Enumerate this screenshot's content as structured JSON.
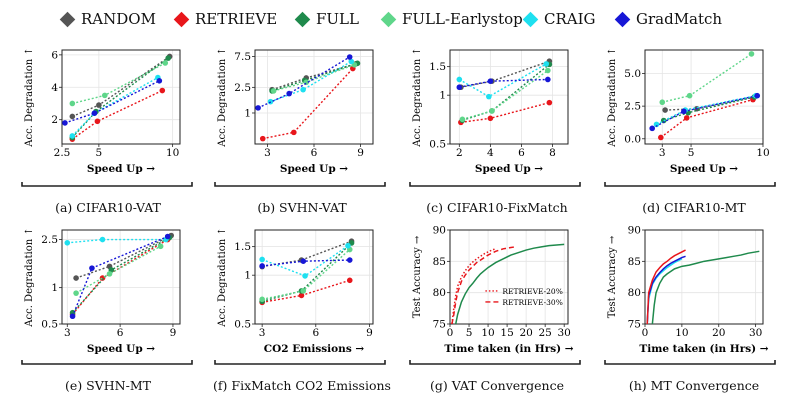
{
  "legend": [
    {
      "name": "RANDOM",
      "color": "#555555"
    },
    {
      "name": "RETRIEVE",
      "color": "#e8161b"
    },
    {
      "name": "FULL",
      "color": "#1f8a4c"
    },
    {
      "name": "FULL-Earlystop",
      "color": "#5fd68a"
    },
    {
      "name": "CRAIG",
      "color": "#1ee0f0"
    },
    {
      "name": "GradMatch",
      "color": "#1717d6"
    }
  ],
  "captions": [
    "(a) CIFAR10-VAT",
    "(b) SVHN-VAT",
    "(c) CIFAR10-FixMatch",
    "(d) CIFAR10-MT",
    "(e) SVHN-MT",
    "(f) FixMatch CO2 Emissions",
    "(g) VAT Convergence",
    "(h) MT Convergence"
  ],
  "chart_data": [
    {
      "type": "scatter",
      "xlabel": "Speed Up →",
      "ylabel": "Acc. Degradation ↑",
      "xlim": [
        2.5,
        10.5
      ],
      "ylim": [
        0.5,
        6.3
      ],
      "xticks": [
        2.5,
        5,
        10
      ],
      "xticklabels": [
        "2.5",
        "5",
        "10"
      ],
      "yticks": [
        2,
        4,
        6
      ],
      "yticklabels": [
        "2",
        "4",
        "6"
      ],
      "series": [
        {
          "name": "RANDOM",
          "x": [
            3.2,
            5.0,
            9.8
          ],
          "y": [
            2.2,
            2.9,
            5.9
          ]
        },
        {
          "name": "RETRIEVE",
          "x": [
            3.2,
            4.9,
            9.3
          ],
          "y": [
            0.8,
            1.9,
            3.8
          ]
        },
        {
          "name": "FULL",
          "x": [
            3.2,
            4.8,
            9.7
          ],
          "y": [
            0.9,
            2.5,
            5.8
          ]
        },
        {
          "name": "FULL-Earlystop",
          "x": [
            3.2,
            5.4,
            9.5
          ],
          "y": [
            3.0,
            3.5,
            5.5
          ]
        },
        {
          "name": "CRAIG",
          "x": [
            3.2,
            4.7,
            9.0
          ],
          "y": [
            1.0,
            2.4,
            4.6
          ]
        },
        {
          "name": "GradMatch",
          "x": [
            2.7,
            4.7,
            9.1
          ],
          "y": [
            1.8,
            2.4,
            4.4
          ]
        }
      ]
    },
    {
      "type": "scatter",
      "xlabel": "Speed Up →",
      "ylabel": "Acc. Degradation ↑",
      "log_y": true,
      "xlim": [
        2.2,
        9.8
      ],
      "ylim": [
        0.33,
        9.5
      ],
      "xticks": [
        3,
        6,
        9
      ],
      "xticklabels": [
        "3",
        "6",
        "9"
      ],
      "yticks": [
        1,
        2.5,
        7.5
      ],
      "yticklabels": [
        "1",
        "2.5",
        "7.5"
      ],
      "series": [
        {
          "name": "RANDOM",
          "x": [
            3.3,
            5.5,
            8.7
          ],
          "y": [
            2.3,
            3.5,
            5.8
          ]
        },
        {
          "name": "RETRIEVE",
          "x": [
            2.7,
            4.7,
            8.5
          ],
          "y": [
            0.4,
            0.5,
            4.9
          ]
        },
        {
          "name": "FULL",
          "x": [
            3.3,
            5.4,
            8.8
          ],
          "y": [
            2.2,
            3.2,
            5.9
          ]
        },
        {
          "name": "FULL-Earlystop",
          "x": [
            3.4,
            5.5,
            8.6
          ],
          "y": [
            2.2,
            3.0,
            5.6
          ]
        },
        {
          "name": "CRAIG",
          "x": [
            3.2,
            5.3,
            8.4
          ],
          "y": [
            1.5,
            2.3,
            6.3
          ]
        },
        {
          "name": "GradMatch",
          "x": [
            2.4,
            4.4,
            8.3
          ],
          "y": [
            1.2,
            2.0,
            7.4
          ]
        }
      ]
    },
    {
      "type": "scatter",
      "xlabel": "Speed Up →",
      "ylabel": "Acc. Degradation ↑",
      "log_y": true,
      "xlim": [
        1.4,
        9.0
      ],
      "ylim": [
        0.5,
        1.9
      ],
      "xticks": [
        2,
        4,
        6,
        8
      ],
      "xticklabels": [
        "2",
        "4",
        "6",
        "8"
      ],
      "yticks": [
        0.5,
        1,
        1.5
      ],
      "yticklabels": [
        "0.5",
        "1",
        "1.5"
      ],
      "series": [
        {
          "name": "RANDOM",
          "x": [
            2.1,
            4.1,
            7.8
          ],
          "y": [
            1.12,
            1.22,
            1.62
          ]
        },
        {
          "name": "RETRIEVE",
          "x": [
            2.1,
            4.0,
            7.8
          ],
          "y": [
            0.68,
            0.72,
            0.9
          ]
        },
        {
          "name": "FULL",
          "x": [
            2.2,
            4.1,
            7.8
          ],
          "y": [
            0.7,
            0.8,
            1.55
          ]
        },
        {
          "name": "FULL-Earlystop",
          "x": [
            2.2,
            4.1,
            7.7
          ],
          "y": [
            0.71,
            0.8,
            1.42
          ]
        },
        {
          "name": "CRAIG",
          "x": [
            2.0,
            3.9,
            7.6
          ],
          "y": [
            1.25,
            0.98,
            1.56
          ]
        },
        {
          "name": "GradMatch",
          "x": [
            2.0,
            4.0,
            7.7
          ],
          "y": [
            1.12,
            1.22,
            1.25
          ]
        }
      ]
    },
    {
      "type": "scatter",
      "xlabel": "Speed Up →",
      "ylabel": "Acc. Degradation ↑",
      "xlim": [
        1.8,
        10.0
      ],
      "ylim": [
        -0.4,
        6.8
      ],
      "xticks": [
        3,
        5,
        10
      ],
      "xticklabels": [
        "3",
        "5",
        "10"
      ],
      "yticks": [
        0.0,
        2.5,
        5.0
      ],
      "yticklabels": [
        "0.0",
        "2.5",
        "5.0"
      ],
      "series": [
        {
          "name": "RANDOM",
          "x": [
            3.2,
            5.4,
            9.4
          ],
          "y": [
            2.2,
            2.3,
            3.2
          ]
        },
        {
          "name": "RETRIEVE",
          "x": [
            2.9,
            4.7,
            9.3
          ],
          "y": [
            0.1,
            1.6,
            3.0
          ]
        },
        {
          "name": "FULL",
          "x": [
            3.1,
            4.8,
            9.4
          ],
          "y": [
            1.4,
            2.0,
            3.2
          ]
        },
        {
          "name": "FULL-Earlystop",
          "x": [
            3.0,
            4.9,
            9.2
          ],
          "y": [
            2.8,
            3.3,
            6.5
          ]
        },
        {
          "name": "CRAIG",
          "x": [
            2.6,
            4.6,
            9.5
          ],
          "y": [
            1.1,
            2.2,
            3.3
          ]
        },
        {
          "name": "GradMatch",
          "x": [
            2.3,
            4.5,
            9.6
          ],
          "y": [
            0.8,
            2.1,
            3.3
          ]
        }
      ]
    },
    {
      "type": "scatter",
      "xlabel": "Speed Up →",
      "ylabel": "Acc. Degradation ↑",
      "log_y": true,
      "xlim": [
        2.7,
        9.4
      ],
      "ylim": [
        0.5,
        3.0
      ],
      "xticks": [
        3,
        6,
        9
      ],
      "xticklabels": [
        "3",
        "6",
        "9"
      ],
      "yticks": [
        0.5,
        1,
        2.5
      ],
      "yticklabels": [
        "0.5",
        "1",
        "2.5"
      ],
      "series": [
        {
          "name": "RANDOM",
          "x": [
            3.5,
            5.4,
            8.9
          ],
          "y": [
            1.2,
            1.5,
            2.7
          ]
        },
        {
          "name": "RETRIEVE",
          "x": [
            3.3,
            5.0,
            8.7
          ],
          "y": [
            0.6,
            1.2,
            2.5
          ]
        },
        {
          "name": "FULL",
          "x": [
            3.3,
            5.5,
            8.8
          ],
          "y": [
            0.62,
            1.4,
            2.6
          ]
        },
        {
          "name": "FULL-Earlystop",
          "x": [
            3.5,
            5.4,
            8.3
          ],
          "y": [
            0.9,
            1.3,
            2.2
          ]
        },
        {
          "name": "CRAIG",
          "x": [
            3.0,
            5.0,
            8.6
          ],
          "y": [
            2.35,
            2.5,
            2.5
          ]
        },
        {
          "name": "GradMatch",
          "x": [
            3.3,
            4.4,
            8.7
          ],
          "y": [
            0.58,
            1.45,
            2.65
          ]
        }
      ]
    },
    {
      "type": "scatter",
      "xlabel": "CO2 Emissions →",
      "ylabel": "Acc. Degradation ↑",
      "log_y": true,
      "xlim": [
        2.6,
        9.2
      ],
      "ylim": [
        0.5,
        1.9
      ],
      "xticks": [
        3,
        6,
        9
      ],
      "xticklabels": [
        "3",
        "6",
        "9"
      ],
      "yticks": [
        0.5,
        1,
        1.5
      ],
      "yticklabels": [
        "0.5",
        "1",
        "1.5"
      ],
      "series": [
        {
          "name": "RANDOM",
          "x": [
            3.0,
            5.2,
            8.0
          ],
          "y": [
            1.13,
            1.24,
            1.62
          ]
        },
        {
          "name": "RETRIEVE",
          "x": [
            3.0,
            5.2,
            7.9
          ],
          "y": [
            0.68,
            0.75,
            0.93
          ]
        },
        {
          "name": "FULL",
          "x": [
            3.0,
            5.2,
            8.0
          ],
          "y": [
            0.69,
            0.8,
            1.58
          ]
        },
        {
          "name": "FULL-Earlystop",
          "x": [
            3.0,
            5.3,
            7.9
          ],
          "y": [
            0.71,
            0.8,
            1.44
          ]
        },
        {
          "name": "CRAIG",
          "x": [
            3.0,
            5.4,
            7.8
          ],
          "y": [
            1.25,
            0.99,
            1.52
          ]
        },
        {
          "name": "GradMatch",
          "x": [
            3.0,
            5.3,
            7.9
          ],
          "y": [
            1.14,
            1.22,
            1.24
          ]
        }
      ]
    },
    {
      "type": "line",
      "xlabel": "Time taken (in Hrs) →",
      "ylabel": "Test Accuracy →",
      "xlim": [
        0,
        31
      ],
      "ylim": [
        75,
        90
      ],
      "xticks": [
        0,
        5,
        10,
        15,
        20,
        25,
        30
      ],
      "xticklabels": [
        "0",
        "5",
        "10",
        "15",
        "20",
        "25",
        "30"
      ],
      "yticks": [
        75,
        80,
        85,
        90
      ],
      "yticklabels": [
        "75",
        "80",
        "85",
        "90"
      ],
      "annotations": [
        "RETRIEVE-20%",
        "RETRIEVE-30%"
      ],
      "series": [
        {
          "name": "FULL",
          "color": "#1f8a4c",
          "style": "solid",
          "x": [
            1.5,
            2,
            3,
            4,
            5,
            6,
            7,
            8,
            9,
            10,
            12,
            14,
            16,
            18,
            20,
            22,
            24,
            26,
            28,
            30
          ],
          "y": [
            75.0,
            76.5,
            78.5,
            79.8,
            80.8,
            81.5,
            82.3,
            83.0,
            83.5,
            84.0,
            84.8,
            85.4,
            86.0,
            86.4,
            86.8,
            87.1,
            87.3,
            87.5,
            87.6,
            87.7
          ]
        },
        {
          "name": "RETRIEVE-20%",
          "color": "#e8161b",
          "style": "dotted",
          "x": [
            0.5,
            1,
            1.5,
            2,
            3,
            4,
            5,
            6,
            7,
            8,
            9,
            10,
            11,
            12
          ],
          "y": [
            75.0,
            77.5,
            79.5,
            81.0,
            82.5,
            83.5,
            84.3,
            84.9,
            85.4,
            85.8,
            86.2,
            86.5,
            86.8,
            87.0
          ]
        },
        {
          "name": "RETRIEVE-30%",
          "color": "#e8161b",
          "style": "dashed",
          "x": [
            0.5,
            1,
            1.5,
            2,
            3,
            4,
            5,
            6,
            7,
            8,
            9,
            10,
            12,
            14,
            16,
            17
          ],
          "y": [
            75.0,
            76.5,
            78.5,
            80.0,
            81.8,
            82.8,
            83.6,
            84.2,
            84.8,
            85.2,
            85.6,
            86.0,
            86.6,
            87.0,
            87.2,
            87.3
          ]
        }
      ]
    },
    {
      "type": "line",
      "xlabel": "Time taken (in Hrs) →",
      "ylabel": "Test Accuracy →",
      "xlim": [
        0,
        32
      ],
      "ylim": [
        75,
        90
      ],
      "xticks": [
        0,
        10,
        20,
        30
      ],
      "xticklabels": [
        "0",
        "10",
        "20",
        "30"
      ],
      "yticks": [
        75,
        80,
        85,
        90
      ],
      "yticklabels": [
        "75",
        "80",
        "85",
        "90"
      ],
      "series": [
        {
          "name": "FULL",
          "color": "#1f8a4c",
          "style": "solid",
          "x": [
            2,
            2.5,
            3,
            4,
            5,
            6,
            7,
            8,
            10,
            12,
            14,
            16,
            18,
            20,
            22,
            24,
            26,
            28,
            30,
            31
          ],
          "y": [
            75.0,
            78.0,
            80.0,
            81.5,
            82.5,
            83.0,
            83.4,
            83.8,
            84.2,
            84.4,
            84.7,
            85.0,
            85.2,
            85.4,
            85.6,
            85.8,
            86.0,
            86.3,
            86.5,
            86.6
          ]
        },
        {
          "name": "CRAIG",
          "color": "#1ee0f0",
          "style": "solid",
          "x": [
            0.6,
            1,
            2,
            3,
            4,
            5,
            6,
            7,
            8,
            9,
            10
          ],
          "y": [
            75.0,
            79.0,
            81.3,
            82.3,
            83.0,
            83.5,
            84.0,
            84.4,
            84.8,
            85.1,
            85.4
          ]
        },
        {
          "name": "GradMatch",
          "color": "#1717d6",
          "style": "solid",
          "x": [
            0.6,
            1,
            2,
            3,
            4,
            5,
            6,
            7,
            8,
            9,
            10,
            11
          ],
          "y": [
            75.0,
            79.5,
            81.5,
            82.5,
            83.2,
            83.8,
            84.3,
            84.7,
            85.0,
            85.3,
            85.6,
            85.8
          ]
        },
        {
          "name": "RETRIEVE",
          "color": "#e8161b",
          "style": "solid",
          "x": [
            0.6,
            1,
            2,
            3,
            4,
            5,
            6,
            7,
            8,
            9,
            10,
            11
          ],
          "y": [
            75.0,
            80.0,
            82.0,
            83.3,
            84.0,
            84.6,
            85.0,
            85.5,
            85.9,
            86.2,
            86.5,
            86.8
          ]
        }
      ]
    }
  ]
}
